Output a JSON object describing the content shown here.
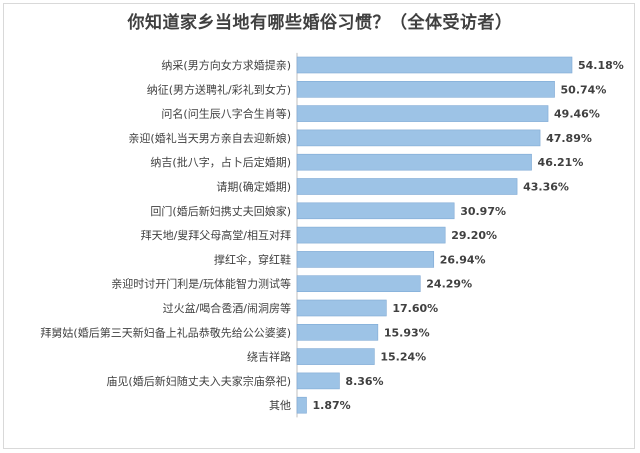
{
  "chart_data": {
    "type": "bar",
    "orientation": "horizontal",
    "title": "你知道家乡当地有哪些婚俗习惯？（全体受访者）",
    "categories": [
      "纳采(男方向女方求婚提亲)",
      "纳征(男方送聘礼/彩礼到女方)",
      "问名(问生辰八字合生肖等)",
      "亲迎(婚礼当天男方亲自去迎新娘)",
      "纳吉(批八字，占卜后定婚期)",
      "请期(确定婚期)",
      "回门(婚后新妇携丈夫回娘家)",
      "拜天地/叟拜父母高堂/相互对拜",
      "撑红伞，穿红鞋",
      "亲迎时讨开门利是/玩体能智力测试等",
      "过火盆/喝合卺酒/闹洞房等",
      "拜舅姑(婚后第三天新妇备上礼品恭敬先给公公婆婆)",
      "绕吉祥路",
      "庙见(婚后新妇随丈夫入夫家宗庙祭祀)",
      "其他"
    ],
    "values": [
      54.18,
      50.74,
      49.46,
      47.89,
      46.21,
      43.36,
      30.97,
      29.2,
      26.94,
      24.29,
      17.6,
      15.93,
      15.24,
      8.36,
      1.87
    ],
    "value_labels": [
      "54.18%",
      "50.74%",
      "49.46%",
      "47.89%",
      "46.21%",
      "43.36%",
      "30.97%",
      "29.20%",
      "26.94%",
      "24.29%",
      "17.60%",
      "15.93%",
      "15.24%",
      "8.36%",
      "1.87%"
    ],
    "xlim": [
      0,
      60
    ],
    "bar_color": "#9dc3e6",
    "bar_stroke": "#7fa9d4",
    "grid": false,
    "legend": "none"
  }
}
